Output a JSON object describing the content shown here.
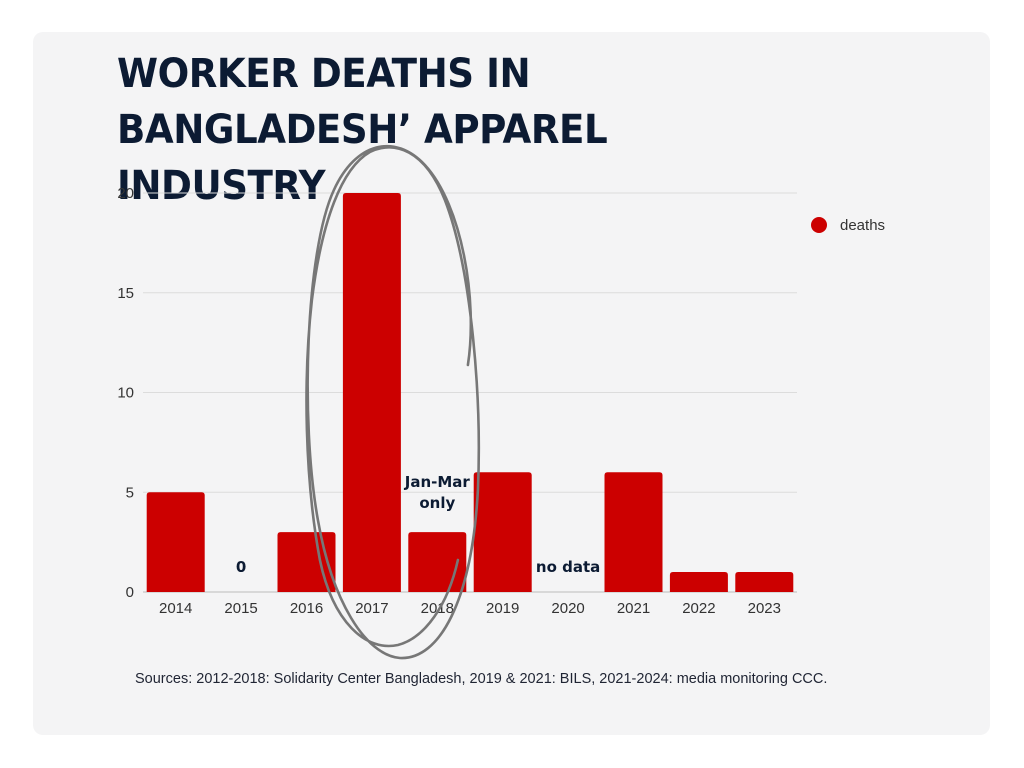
{
  "title": "WORKER DEATHS IN BANGLADESH’ APPAREL INDUSTRY",
  "source": "Sources: 2012-2018: Solidarity Center Bangladesh, 2019 & 2021: BILS, 2021-2024: media monitoring CCC.",
  "colors": {
    "bar": "#cc0000",
    "text": "#0c1b33",
    "grid": "#dcdcdc",
    "background": "#f4f4f5",
    "circle": "#777777"
  },
  "chart_data": {
    "type": "bar",
    "categories": [
      "2014",
      "2015",
      "2016",
      "2017",
      "2018",
      "2019",
      "2020",
      "2021",
      "2022",
      "2023"
    ],
    "series": [
      {
        "name": "deaths",
        "values": [
          5,
          0,
          3,
          20,
          3,
          6,
          null,
          6,
          1,
          1
        ]
      }
    ],
    "ylim": [
      0,
      20
    ],
    "yticks": [
      0,
      5,
      10,
      15,
      20
    ],
    "grid": true,
    "legend_position": "top-right",
    "annotations": [
      {
        "category": "2015",
        "text": "0"
      },
      {
        "category": "2018",
        "text": "Jan-Mar only"
      },
      {
        "category": "2020",
        "text": "no data"
      }
    ],
    "highlight": {
      "category": "2017",
      "style": "hand-drawn circle"
    }
  }
}
